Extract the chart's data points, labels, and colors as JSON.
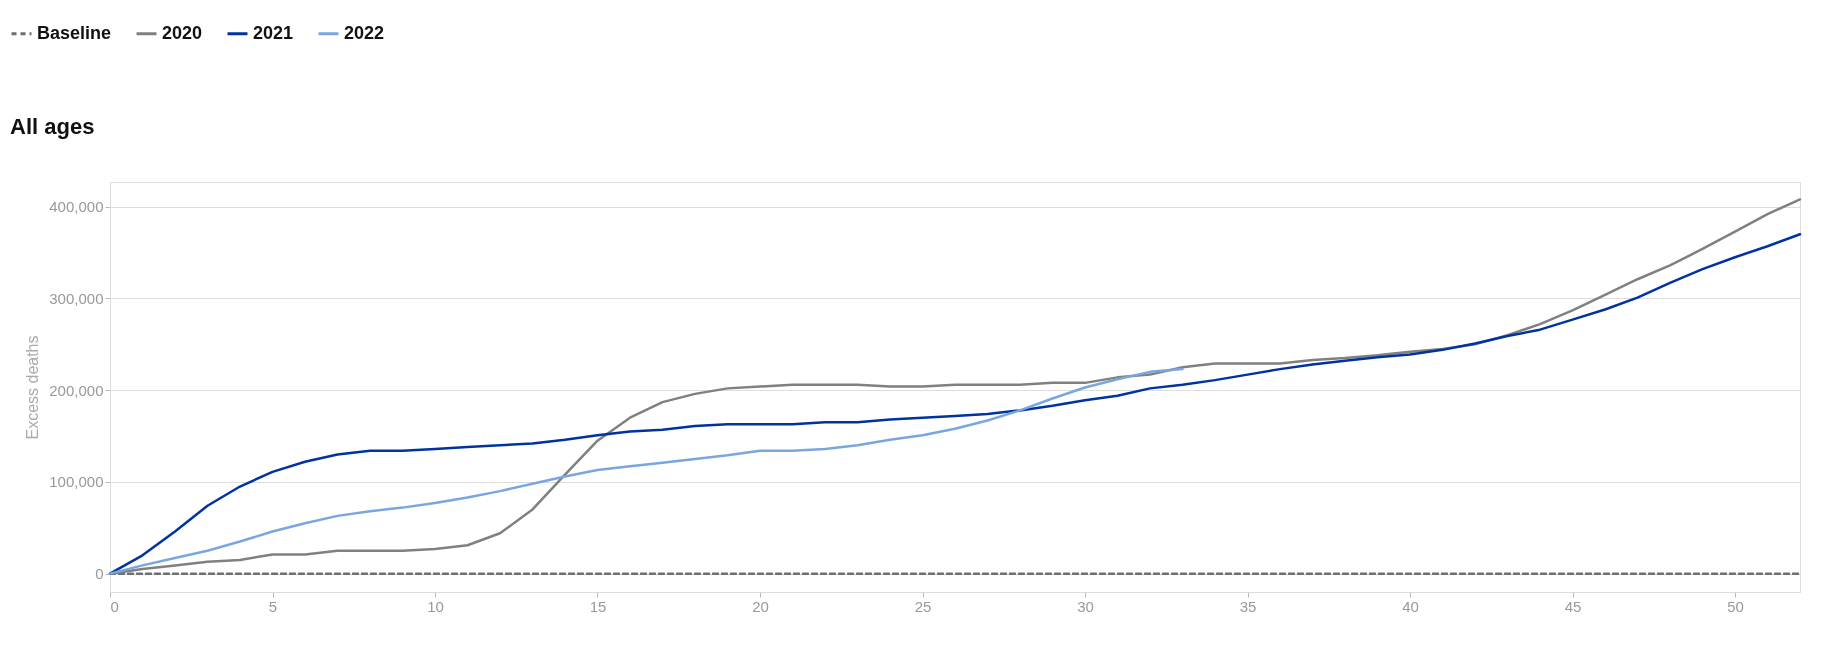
{
  "chart_data": {
    "type": "line",
    "title": "All ages",
    "ylabel": "Excess deaths",
    "xlim": [
      0,
      52
    ],
    "xticks": [
      0,
      5,
      10,
      15,
      20,
      25,
      30,
      35,
      40,
      45,
      50
    ],
    "ylim": [
      -20000,
      427000
    ],
    "yticks": [
      {
        "value": 0,
        "label": "0"
      },
      {
        "value": 100000,
        "label": "100,000"
      },
      {
        "value": 200000,
        "label": "200,000"
      },
      {
        "value": 300000,
        "label": "300,000"
      },
      {
        "value": 400000,
        "label": "400,000"
      }
    ],
    "grid": "y",
    "legend": "top left",
    "series": [
      {
        "name": "Baseline",
        "color": "#6e6e6e",
        "line_style": "dashed",
        "x": [
          0,
          52
        ],
        "values": [
          0,
          0
        ]
      },
      {
        "name": "2020",
        "color": "#808080",
        "x": [
          0,
          1,
          2,
          3,
          4,
          5,
          6,
          7,
          8,
          9,
          10,
          11,
          12,
          13,
          14,
          15,
          16,
          17,
          18,
          19,
          20,
          21,
          22,
          23,
          24,
          25,
          26,
          27,
          28,
          29,
          30,
          31,
          32,
          33,
          34,
          35,
          36,
          37,
          38,
          39,
          40,
          41,
          42,
          43,
          44,
          45,
          46,
          47,
          48,
          49,
          50,
          51,
          52
        ],
        "values": [
          0,
          5000,
          9000,
          13000,
          15000,
          21000,
          21000,
          25000,
          25000,
          25000,
          27000,
          31000,
          44000,
          70000,
          108000,
          145000,
          170000,
          187000,
          196000,
          202000,
          204000,
          206000,
          206000,
          206000,
          204000,
          204000,
          206000,
          206000,
          206000,
          208000,
          208000,
          214000,
          217000,
          225000,
          229000,
          229000,
          229000,
          233000,
          235000,
          238000,
          242000,
          245000,
          250000,
          260000,
          272000,
          287000,
          304000,
          321000,
          336000,
          354000,
          373000,
          392000,
          408000
        ]
      },
      {
        "name": "2021",
        "color": "#0033a0",
        "x": [
          0,
          1,
          2,
          3,
          4,
          5,
          6,
          7,
          8,
          9,
          10,
          11,
          12,
          13,
          14,
          15,
          16,
          17,
          18,
          19,
          20,
          21,
          22,
          23,
          24,
          25,
          26,
          27,
          28,
          29,
          30,
          31,
          32,
          33,
          34,
          35,
          36,
          37,
          38,
          39,
          40,
          41,
          42,
          43,
          44,
          45,
          46,
          47,
          48,
          49,
          50,
          51,
          52
        ],
        "values": [
          0,
          20000,
          46000,
          74000,
          95000,
          111000,
          122000,
          130000,
          134000,
          134000,
          136000,
          138000,
          140000,
          142000,
          146000,
          151000,
          155000,
          157000,
          161000,
          163000,
          163000,
          163000,
          165000,
          165000,
          168000,
          170000,
          172000,
          174000,
          178000,
          183000,
          189000,
          194000,
          202000,
          206000,
          211000,
          217000,
          223000,
          228000,
          232000,
          236000,
          239000,
          244000,
          251000,
          259000,
          266000,
          277000,
          288000,
          301000,
          317000,
          332000,
          345000,
          357000,
          370000
        ]
      },
      {
        "name": "2022",
        "color": "#7aa6e0",
        "x": [
          0,
          1,
          2,
          3,
          4,
          5,
          6,
          7,
          8,
          9,
          10,
          11,
          12,
          13,
          14,
          15,
          16,
          17,
          18,
          19,
          20,
          21,
          22,
          23,
          24,
          25,
          26,
          27,
          28,
          29,
          30,
          31,
          32,
          33
        ],
        "values": [
          0,
          9000,
          17000,
          25000,
          35000,
          46000,
          55000,
          63000,
          68000,
          72000,
          77000,
          83000,
          90000,
          98000,
          106000,
          113000,
          117000,
          121000,
          125000,
          129000,
          134000,
          134000,
          136000,
          140000,
          146000,
          151000,
          158000,
          167000,
          178000,
          191000,
          203000,
          212000,
          220000,
          223000
        ]
      }
    ]
  }
}
